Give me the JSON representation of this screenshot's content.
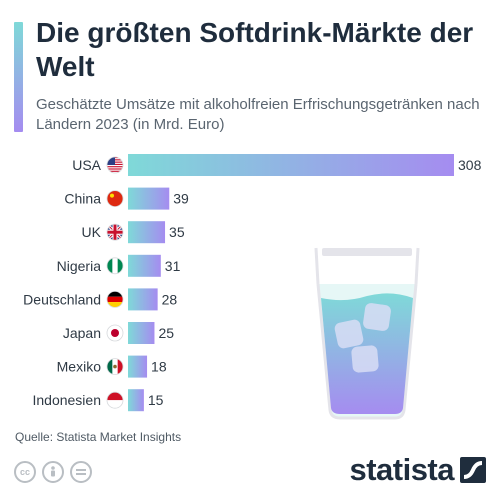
{
  "header": {
    "title": "Die größten Softdrink-Märkte der Welt",
    "subtitle": "Geschätzte Umsätze mit alkoholfreien Erfrischungsgetränken nach Ländern 2023 (in Mrd. Euro)"
  },
  "footer": {
    "source": "Quelle: Statista Market Insights",
    "logo_text": "statista"
  },
  "colors": {
    "bar_start": "#7fd9d8",
    "bar_end": "#a58cf0",
    "accent_start": "#7fd9d8",
    "accent_end": "#a58cf0",
    "logo": "#1f2d3d"
  },
  "icons": [
    "cc-license-icon",
    "attribution-icon",
    "no-derivatives-icon",
    "statista-logo-icon",
    "glass-illustration-icon"
  ],
  "chart_data": {
    "type": "bar",
    "orientation": "horizontal",
    "categories": [
      "USA",
      "China",
      "UK",
      "Nigeria",
      "Deutschland",
      "Japan",
      "Mexiko",
      "Indonesien"
    ],
    "flags": [
      "us-flag-icon",
      "cn-flag-icon",
      "uk-flag-icon",
      "ng-flag-icon",
      "de-flag-icon",
      "jp-flag-icon",
      "mx-flag-icon",
      "id-flag-icon"
    ],
    "values": [
      308,
      39,
      35,
      31,
      28,
      25,
      18,
      15
    ],
    "xlim": [
      0,
      308
    ],
    "grid": false,
    "legend": "none"
  }
}
